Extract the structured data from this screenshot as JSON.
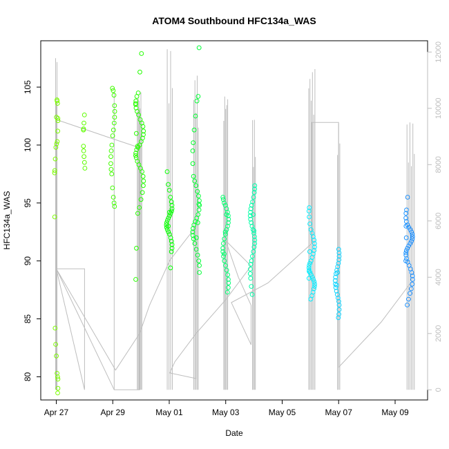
{
  "chart_data": {
    "type": "scatter",
    "title": "ATOM4 Southbound HFC134a_WAS",
    "xlabel": "Date",
    "ylabel": "HFC134a_WAS",
    "x_unit": "days since Apr 27 (00:00)",
    "xlim": [
      -0.55,
      13.15
    ],
    "ylim": [
      78.0,
      109.0
    ],
    "y2lim": [
      -360,
      12400
    ],
    "x_ticks": [
      {
        "x": 0,
        "label": "Apr 27"
      },
      {
        "x": 2,
        "label": "Apr 29"
      },
      {
        "x": 4,
        "label": "May 01"
      },
      {
        "x": 6,
        "label": "May 03"
      },
      {
        "x": 8,
        "label": "May 05"
      },
      {
        "x": 10,
        "label": "May 07"
      },
      {
        "x": 12,
        "label": "May 09"
      }
    ],
    "y_ticks": [
      {
        "v": 80,
        "label": "80"
      },
      {
        "v": 85,
        "label": "85"
      },
      {
        "v": 90,
        "label": "90"
      },
      {
        "v": 95,
        "label": "95"
      },
      {
        "v": 100,
        "label": "100"
      },
      {
        "v": 105,
        "label": "105"
      }
    ],
    "y2_ticks": [
      {
        "v": 0,
        "label": "0"
      },
      {
        "v": 2000,
        "label": "2000"
      },
      {
        "v": 4000,
        "label": "4000"
      },
      {
        "v": 6000,
        "label": "6000"
      },
      {
        "v": 8000,
        "label": "8000"
      },
      {
        "v": 10000,
        "label": "10000"
      },
      {
        "v": 12000,
        "label": "12000"
      }
    ],
    "point_color_scale": [
      "#7cfc00",
      "#00ff00",
      "#00ffff",
      "#1e90ff"
    ],
    "point_groups": [
      {
        "x": 0.0,
        "spread": 0.06,
        "values": [
          103.9,
          103.6,
          102.3,
          102.1,
          101.2,
          100.3,
          100.1,
          99.8,
          98.8,
          97.8,
          97.6,
          93.8,
          84.2,
          82.8,
          81.8,
          80.3,
          80.0,
          79.8,
          79.0,
          78.6,
          103.8,
          102.4
        ]
      },
      {
        "x": 1.0,
        "spread": 0.04,
        "values": [
          102.6,
          101.9,
          101.4,
          101.3,
          99.9,
          99.5,
          99.0,
          98.5,
          98.0
        ]
      },
      {
        "x": 2.0,
        "spread": 0.07,
        "values": [
          104.9,
          104.7,
          104.3,
          103.4,
          102.9,
          102.4,
          101.9,
          101.3,
          100.8,
          100.0,
          99.5,
          99.0,
          98.4,
          97.9,
          97.5,
          96.3,
          95.5,
          95.0,
          94.7
        ]
      },
      {
        "x": 2.95,
        "spread": 0.14,
        "values": [
          107.9,
          106.3,
          104.5,
          104.2,
          103.8,
          103.6,
          103.2,
          102.9,
          102.6,
          102.2,
          101.9,
          101.6,
          101.2,
          100.9,
          100.6,
          100.3,
          100.0,
          99.8,
          99.6,
          99.3,
          99.1,
          98.9,
          98.6,
          98.3,
          98.0,
          97.7,
          97.3,
          96.9,
          96.5,
          95.9,
          95.3,
          94.6,
          94.1,
          91.1,
          88.4,
          103.5,
          101.0,
          99.9
        ]
      },
      {
        "x": 4.0,
        "spread": 0.1,
        "values": [
          97.7,
          96.6,
          96.1,
          95.5,
          95.1,
          94.8,
          94.5,
          94.3,
          94.1,
          93.9,
          93.7,
          93.5,
          93.3,
          93.1,
          92.9,
          92.7,
          92.5,
          92.3,
          92.0,
          91.7,
          91.4,
          91.1,
          90.8,
          89.4,
          94.2,
          93.0
        ]
      },
      {
        "x": 4.95,
        "spread": 0.12,
        "values": [
          108.4,
          104.2,
          103.8,
          102.5,
          101.3,
          100.2,
          99.5,
          98.4,
          97.3,
          96.9,
          96.5,
          96.0,
          95.6,
          95.2,
          94.8,
          94.4,
          94.0,
          93.7,
          93.4,
          93.1,
          92.8,
          92.5,
          92.2,
          91.9,
          91.5,
          91.0,
          90.5,
          90.0,
          89.6,
          89.0,
          94.9,
          93.3,
          92.0
        ]
      },
      {
        "x": 6.0,
        "spread": 0.1,
        "values": [
          95.5,
          95.3,
          95.0,
          94.8,
          94.5,
          94.2,
          93.9,
          93.6,
          93.3,
          93.0,
          92.7,
          92.3,
          91.9,
          91.5,
          91.1,
          90.8,
          90.4,
          90.0,
          89.6,
          89.2,
          88.8,
          88.4,
          88.1,
          87.7,
          87.3,
          94.0,
          92.5,
          90.6
        ]
      },
      {
        "x": 6.95,
        "spread": 0.08,
        "values": [
          96.5,
          96.2,
          95.9,
          95.5,
          95.1,
          94.8,
          94.5,
          94.2,
          93.9,
          93.6,
          93.3,
          93.0,
          92.7,
          92.4,
          92.1,
          91.8,
          91.5,
          91.2,
          90.8,
          90.4,
          90.0,
          89.7,
          89.3,
          88.9,
          88.5,
          87.8,
          87.1,
          94.0,
          92.6
        ]
      },
      {
        "x": 9.05,
        "spread": 0.1,
        "values": [
          94.6,
          94.3,
          93.8,
          93.2,
          92.7,
          92.4,
          92.1,
          91.8,
          91.5,
          91.2,
          90.9,
          90.6,
          90.3,
          90.0,
          89.8,
          89.6,
          89.4,
          89.2,
          89.0,
          88.8,
          88.6,
          88.4,
          88.2,
          88.0,
          87.8,
          87.6,
          87.3,
          87.0,
          86.7,
          90.8,
          89.1,
          88.5
        ]
      },
      {
        "x": 9.95,
        "spread": 0.07,
        "values": [
          91.0,
          90.7,
          90.4,
          90.1,
          89.8,
          89.5,
          89.2,
          88.9,
          88.6,
          88.3,
          88.0,
          87.7,
          87.4,
          87.1,
          86.8,
          86.5,
          86.2,
          85.8,
          85.4,
          85.1,
          89.0,
          87.9
        ]
      },
      {
        "x": 12.5,
        "spread": 0.12,
        "values": [
          95.5,
          94.4,
          94.1,
          93.7,
          93.4,
          93.1,
          92.9,
          92.7,
          92.5,
          92.3,
          92.1,
          91.9,
          91.7,
          91.5,
          91.3,
          91.1,
          90.9,
          90.7,
          90.5,
          90.2,
          89.9,
          89.6,
          89.3,
          89.0,
          88.7,
          88.4,
          88.0,
          87.6,
          87.2,
          86.7,
          86.2,
          92.0,
          90.0,
          93.0
        ]
      }
    ],
    "altitude_spikes": [
      {
        "x": 0.0,
        "count": 3,
        "width": 0.05,
        "top": 11800
      },
      {
        "x": 2.05,
        "count": 1,
        "width": 0.0,
        "top": 11800
      },
      {
        "x": 2.95,
        "count": 6,
        "width": 0.16,
        "top": 10800
      },
      {
        "x": 4.02,
        "count": 4,
        "width": 0.18,
        "top": 12100
      },
      {
        "x": 4.95,
        "count": 5,
        "width": 0.16,
        "top": 11200
      },
      {
        "x": 6.0,
        "count": 5,
        "width": 0.14,
        "top": 10700
      },
      {
        "x": 7.0,
        "count": 4,
        "width": 0.1,
        "top": 9600
      },
      {
        "x": 9.05,
        "count": 6,
        "width": 0.22,
        "top": 11400
      },
      {
        "x": 10.0,
        "count": 3,
        "width": 0.08,
        "top": 9600
      },
      {
        "x": 12.55,
        "count": 6,
        "width": 0.26,
        "top": 9500
      }
    ],
    "altitude_path": [
      [
        0.0,
        9600
      ],
      [
        2.05,
        8900
      ],
      [
        2.95,
        8600
      ],
      [
        2.95,
        0
      ],
      [
        2.05,
        0
      ],
      [
        0.0,
        4300
      ],
      [
        1.0,
        4300
      ],
      [
        1.0,
        0
      ],
      [
        0.0,
        4300
      ],
      [
        2.1,
        700
      ],
      [
        2.95,
        2000
      ],
      [
        3.3,
        3000
      ],
      [
        4.02,
        4600
      ],
      [
        4.95,
        5800
      ],
      [
        4.95,
        400
      ],
      [
        4.02,
        600
      ],
      [
        4.2,
        1000
      ],
      [
        4.95,
        2000
      ],
      [
        6.0,
        3200
      ],
      [
        6.9,
        4400
      ],
      [
        6.0,
        5300
      ],
      [
        6.45,
        4000
      ],
      [
        6.9,
        3000
      ],
      [
        6.9,
        1600
      ],
      [
        6.2,
        3100
      ],
      [
        7.5,
        3800
      ],
      [
        9.05,
        5200
      ],
      [
        9.05,
        9500
      ],
      [
        10.0,
        9500
      ],
      [
        10.0,
        800
      ],
      [
        11.5,
        2400
      ],
      [
        12.55,
        3800
      ]
    ]
  }
}
